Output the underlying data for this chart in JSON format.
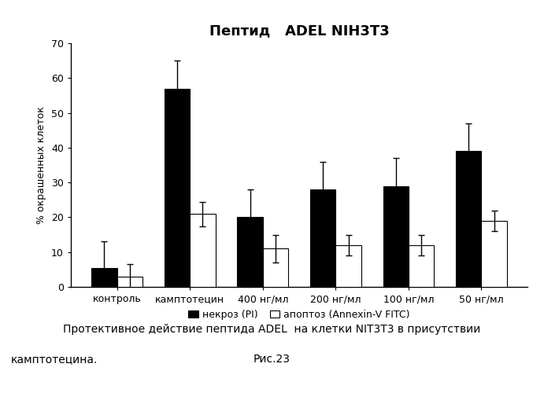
{
  "title": "Пептид   ADEL NIH3T3",
  "ylabel": "% окрашенных клеток",
  "categories": [
    "контроль",
    "камптотецин",
    "400 нг/мл",
    "200 нг/мл",
    "100 нг/мл",
    "50 нг/мл"
  ],
  "necrosis_values": [
    5.5,
    57.0,
    20.0,
    28.0,
    29.0,
    39.0
  ],
  "apoptosis_values": [
    3.0,
    21.0,
    11.0,
    12.0,
    12.0,
    19.0
  ],
  "necrosis_errors": [
    7.5,
    8.0,
    8.0,
    8.0,
    8.0,
    8.0
  ],
  "apoptosis_errors": [
    3.5,
    3.5,
    4.0,
    3.0,
    3.0,
    3.0
  ],
  "necrosis_color": "#000000",
  "apoptosis_color": "#ffffff",
  "ylim": [
    0,
    70
  ],
  "yticks": [
    0,
    10,
    20,
    30,
    40,
    50,
    60,
    70
  ],
  "legend_necrosis": "некроз (PI)",
  "legend_apoptosis": "апоптоз (Annexin-V FITC)",
  "caption_line1": "Протективное действие пептида ADEL  на клетки NIT3T3 в присутствии",
  "caption_line2": "камптотецина.",
  "caption_fig": "Рис.23",
  "bar_width": 0.35,
  "background_color": "#ffffff",
  "title_fontsize": 13,
  "axis_fontsize": 9,
  "tick_fontsize": 9,
  "legend_fontsize": 9,
  "caption_fontsize": 10
}
